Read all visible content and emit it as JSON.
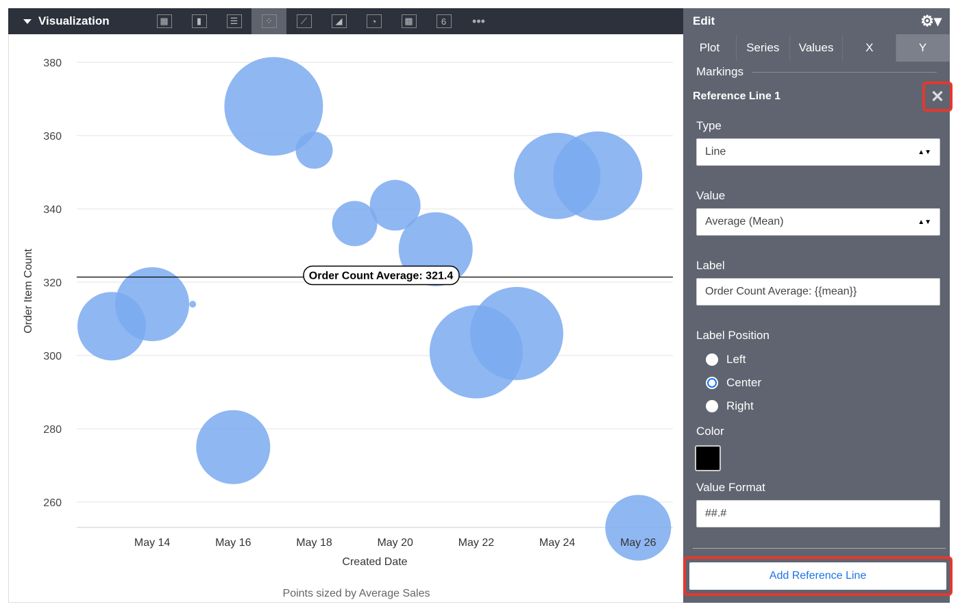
{
  "toolbar": {
    "title": "Visualization",
    "icons": [
      "table-icon",
      "column-chart-icon",
      "bar-chart-icon",
      "scatter-chart-icon",
      "line-chart-icon",
      "area-chart-icon",
      "pie-chart-icon",
      "map-icon",
      "single-value-icon",
      "more-icon"
    ],
    "single_value_glyph": "6",
    "more_glyph": "•••",
    "active": "scatter-chart-icon"
  },
  "panel": {
    "title": "Edit",
    "tabs": [
      "Plot",
      "Series",
      "Values",
      "X",
      "Y"
    ],
    "active_tab": "Y",
    "section": "Markings",
    "ref_title": "Reference Line 1",
    "type_label": "Type",
    "type_value": "Line",
    "value_label": "Value",
    "value_value": "Average (Mean)",
    "label_label": "Label",
    "label_value": "Order Count Average: {{mean}}",
    "position_label": "Label Position",
    "positions": [
      "Left",
      "Center",
      "Right"
    ],
    "position_selected": "Center",
    "color_label": "Color",
    "color_value": "#000000",
    "format_label": "Value Format",
    "format_value": "##.#",
    "add_button": "Add Reference Line",
    "highlight_color": "#e5382d"
  },
  "chart_data": {
    "type": "scatter",
    "xlabel": "Created Date",
    "ylabel": "Order Item Count",
    "footnote": "Points sized by Average Sales",
    "ylim": [
      252,
      384
    ],
    "yticks": [
      260,
      280,
      300,
      320,
      340,
      360,
      380
    ],
    "xticks": [
      "May 14",
      "May 16",
      "May 18",
      "May 20",
      "May 22",
      "May 24",
      "May 26"
    ],
    "bubble_color": "#7baaf0",
    "points": [
      {
        "x": "May 13",
        "y": 308,
        "size": 50
      },
      {
        "x": "May 14",
        "y": 314,
        "size": 54
      },
      {
        "x": "May 15",
        "y": 314,
        "size": 5
      },
      {
        "x": "May 16",
        "y": 275,
        "size": 54
      },
      {
        "x": "May 17",
        "y": 368,
        "size": 72
      },
      {
        "x": "May 18",
        "y": 356,
        "size": 27
      },
      {
        "x": "May 19",
        "y": 336,
        "size": 33
      },
      {
        "x": "May 20",
        "y": 341,
        "size": 37
      },
      {
        "x": "May 21",
        "y": 329,
        "size": 54
      },
      {
        "x": "May 22",
        "y": 301,
        "size": 68
      },
      {
        "x": "May 23",
        "y": 306,
        "size": 68
      },
      {
        "x": "May 24",
        "y": 349,
        "size": 63
      },
      {
        "x": "May 25",
        "y": 349,
        "size": 65
      },
      {
        "x": "May 26",
        "y": 253,
        "size": 48
      }
    ],
    "reference_line": {
      "value": 321.4,
      "label": "Order Count Average: 321.4",
      "color": "#000000"
    }
  }
}
